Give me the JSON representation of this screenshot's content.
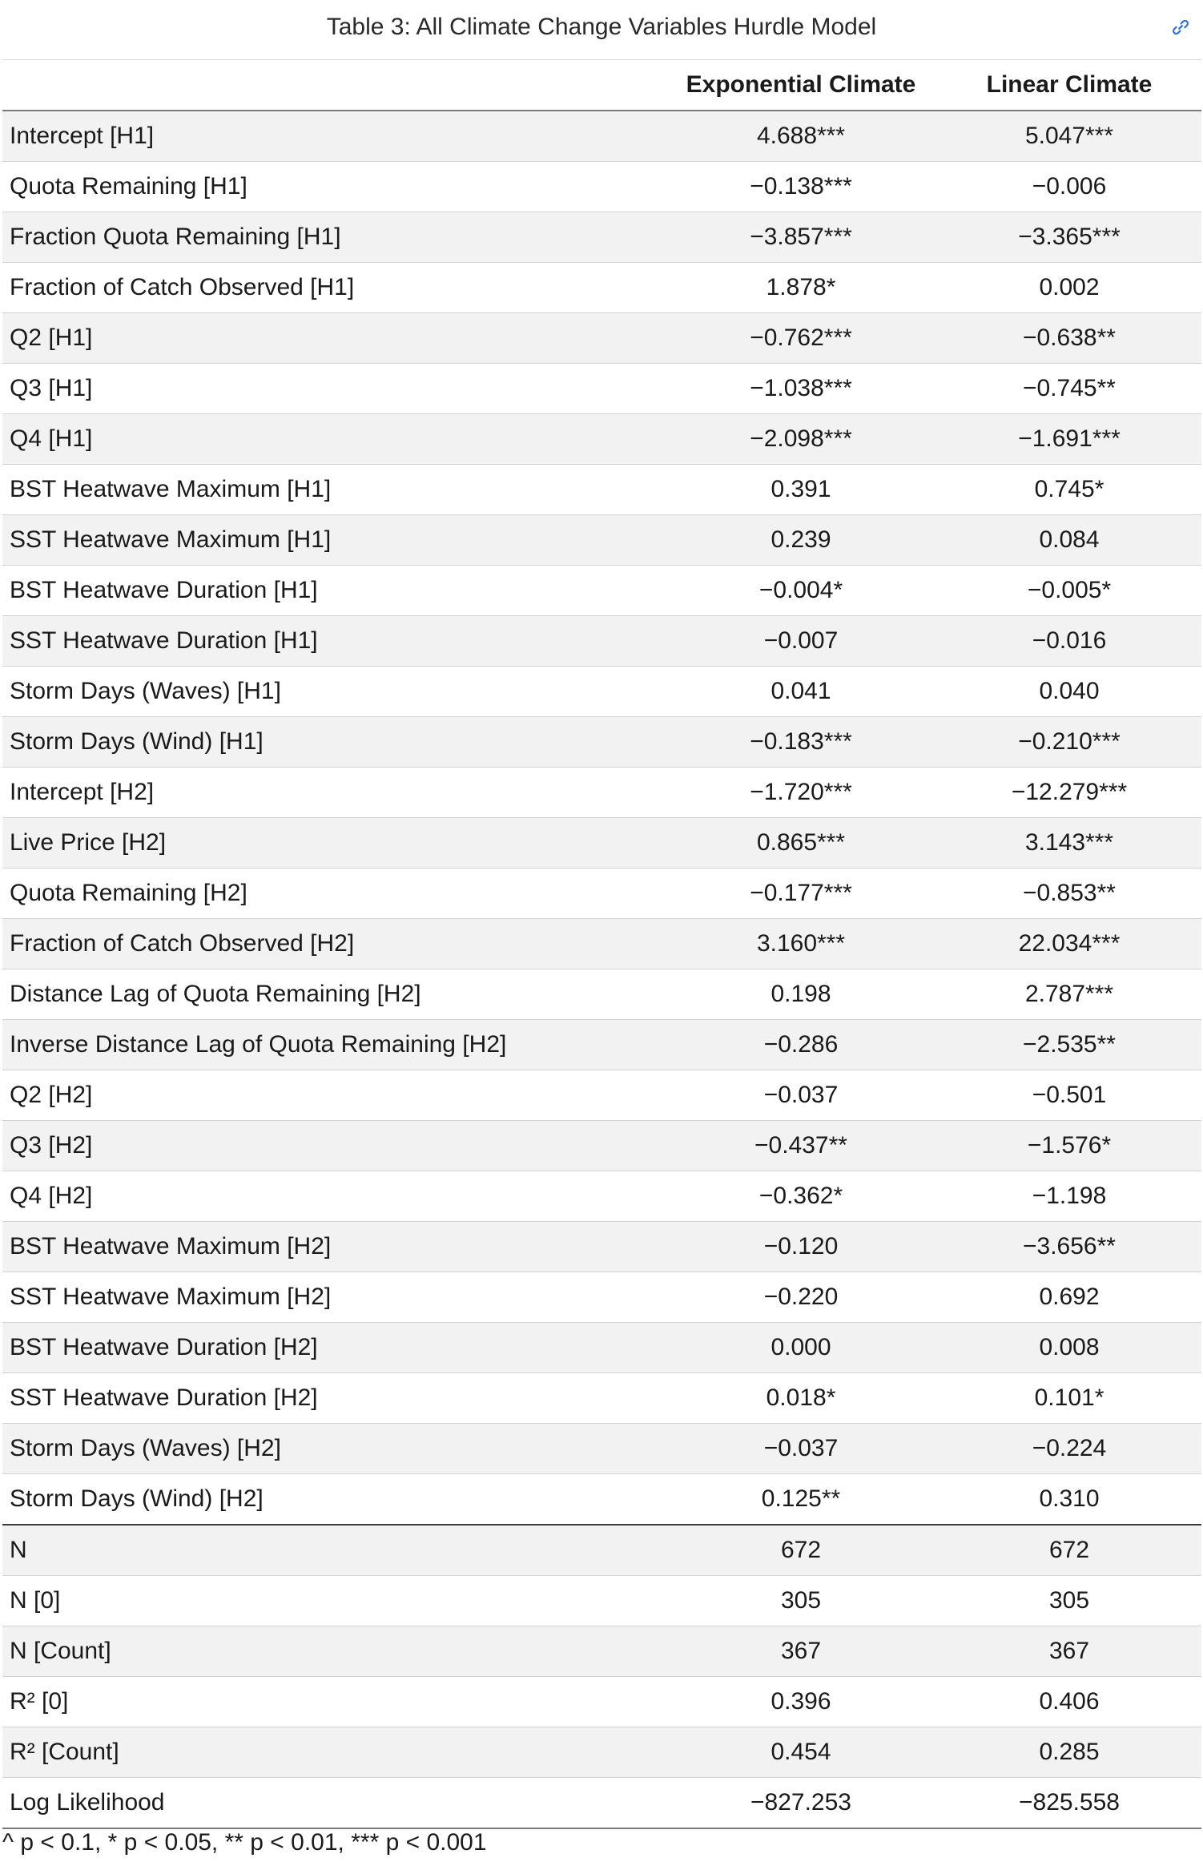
{
  "caption": "Table 3: All Climate Change Variables Hurdle Model",
  "anchor_icon": "link-icon",
  "colors": {
    "row_shade": "#f2f2f2",
    "anchor_link": "#2f6fd8",
    "rule": "#7a7a7a"
  },
  "columns": {
    "label": "",
    "exponential": "Exponential Climate",
    "linear": "Linear Climate"
  },
  "coefficients": [
    {
      "label": "Intercept [H1]",
      "exponential": "4.688***",
      "linear": "5.047***"
    },
    {
      "label": "Quota Remaining [H1]",
      "exponential": "−0.138***",
      "linear": "−0.006"
    },
    {
      "label": "Fraction Quota Remaining [H1]",
      "exponential": "−3.857***",
      "linear": "−3.365***"
    },
    {
      "label": "Fraction of Catch Observed [H1]",
      "exponential": "1.878*",
      "linear": "0.002"
    },
    {
      "label": "Q2 [H1]",
      "exponential": "−0.762***",
      "linear": "−0.638**"
    },
    {
      "label": "Q3 [H1]",
      "exponential": "−1.038***",
      "linear": "−0.745**"
    },
    {
      "label": "Q4 [H1]",
      "exponential": "−2.098***",
      "linear": "−1.691***"
    },
    {
      "label": "BST Heatwave Maximum [H1]",
      "exponential": "0.391",
      "linear": "0.745*"
    },
    {
      "label": "SST Heatwave Maximum [H1]",
      "exponential": "0.239",
      "linear": "0.084"
    },
    {
      "label": "BST Heatwave Duration [H1]",
      "exponential": "−0.004*",
      "linear": "−0.005*"
    },
    {
      "label": "SST Heatwave Duration [H1]",
      "exponential": "−0.007",
      "linear": "−0.016"
    },
    {
      "label": "Storm Days (Waves) [H1]",
      "exponential": "0.041",
      "linear": "0.040"
    },
    {
      "label": "Storm Days (Wind) [H1]",
      "exponential": "−0.183***",
      "linear": "−0.210***"
    },
    {
      "label": "Intercept [H2]",
      "exponential": "−1.720***",
      "linear": "−12.279***"
    },
    {
      "label": "Live Price [H2]",
      "exponential": "0.865***",
      "linear": "3.143***"
    },
    {
      "label": "Quota Remaining [H2]",
      "exponential": "−0.177***",
      "linear": "−0.853**"
    },
    {
      "label": "Fraction of Catch Observed [H2]",
      "exponential": "3.160***",
      "linear": "22.034***"
    },
    {
      "label": "Distance Lag of Quota Remaining [H2]",
      "exponential": "0.198",
      "linear": "2.787***"
    },
    {
      "label": "Inverse Distance Lag of Quota Remaining [H2]",
      "exponential": "−0.286",
      "linear": "−2.535**"
    },
    {
      "label": "Q2 [H2]",
      "exponential": "−0.037",
      "linear": "−0.501"
    },
    {
      "label": "Q3 [H2]",
      "exponential": "−0.437**",
      "linear": "−1.576*"
    },
    {
      "label": "Q4 [H2]",
      "exponential": "−0.362*",
      "linear": "−1.198"
    },
    {
      "label": "BST Heatwave Maximum [H2]",
      "exponential": "−0.120",
      "linear": "−3.656**"
    },
    {
      "label": "SST Heatwave Maximum [H2]",
      "exponential": "−0.220",
      "linear": "0.692"
    },
    {
      "label": "BST Heatwave Duration [H2]",
      "exponential": "0.000",
      "linear": "0.008"
    },
    {
      "label": "SST Heatwave Duration [H2]",
      "exponential": "0.018*",
      "linear": "0.101*"
    },
    {
      "label": "Storm Days (Waves) [H2]",
      "exponential": "−0.037",
      "linear": "−0.224"
    },
    {
      "label": "Storm Days (Wind) [H2]",
      "exponential": "0.125**",
      "linear": "0.310"
    }
  ],
  "statistics": [
    {
      "label": "N",
      "exponential": "672",
      "linear": "672"
    },
    {
      "label": "N [0]",
      "exponential": "305",
      "linear": "305"
    },
    {
      "label": "N [Count]",
      "exponential": "367",
      "linear": "367"
    },
    {
      "label": "R² [0]",
      "exponential": "0.396",
      "linear": "0.406"
    },
    {
      "label": "R² [Count]",
      "exponential": "0.454",
      "linear": "0.285"
    },
    {
      "label": "Log Likelihood",
      "exponential": "−827.253",
      "linear": "−825.558"
    }
  ],
  "footnote": "^ p < 0.1, * p < 0.05, ** p < 0.01, *** p < 0.001"
}
